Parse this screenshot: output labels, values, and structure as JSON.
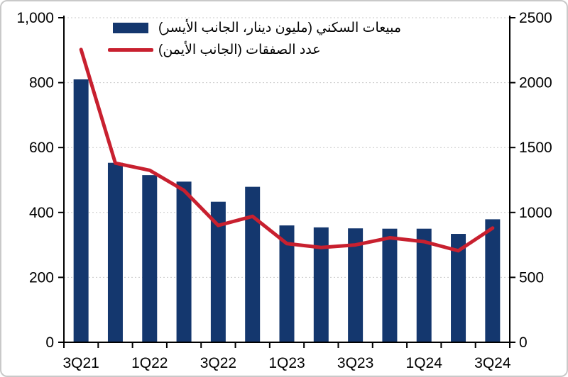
{
  "colors": {
    "bar_navy": "#14376e",
    "line_red": "#c8202f",
    "gridline": "#c9c9c9",
    "axis": "#000000",
    "frame_border": "#c9c9c9",
    "background": "#ffffff",
    "text": "#000000"
  },
  "legend": {
    "sales_label": "مبيعات السكني (مليون دينار، الجانب الأيسر)",
    "transactions_label": "عدد الصفقات (الجانب الأيمن)"
  },
  "chart_data": {
    "type": "bar",
    "subtype": "combo-bar-line-dual-axis",
    "categories": [
      "3Q21",
      "4Q21",
      "1Q22",
      "2Q22",
      "3Q22",
      "4Q22",
      "1Q23",
      "2Q23",
      "3Q23",
      "4Q23",
      "1Q24",
      "2Q24",
      "3Q24"
    ],
    "x_tick_labels": [
      "3Q21",
      "1Q22",
      "3Q22",
      "1Q23",
      "3Q23",
      "1Q24",
      "3Q24"
    ],
    "x_tick_label_every": 2,
    "series": [
      {
        "name": "مبيعات السكني (مليون دينار، الجانب الأيسر)",
        "type": "bar",
        "axis": "left",
        "color": "#14376e",
        "values": [
          810,
          553,
          515,
          495,
          433,
          479,
          360,
          354,
          351,
          350,
          350,
          334,
          379
        ]
      },
      {
        "name": "عدد الصفقات (الجانب الأيمن)",
        "type": "line",
        "axis": "right",
        "color": "#c8202f",
        "values": [
          2255,
          1380,
          1325,
          1170,
          900,
          970,
          760,
          730,
          750,
          805,
          775,
          705,
          880
        ]
      }
    ],
    "left_axis": {
      "min": 0,
      "max": 1000,
      "step": 200,
      "tick_labels": [
        "0",
        "200",
        "400",
        "600",
        "800",
        "1,000"
      ]
    },
    "right_axis": {
      "min": 0,
      "max": 2500,
      "step": 500,
      "tick_labels": [
        "0",
        "500",
        "1000",
        "1500",
        "2000",
        "2500"
      ]
    },
    "title": "",
    "xlabel": "",
    "ylabel_left": "",
    "ylabel_right": "",
    "grid": "dotted-horizontal",
    "legend_position": "top-left-inside"
  }
}
